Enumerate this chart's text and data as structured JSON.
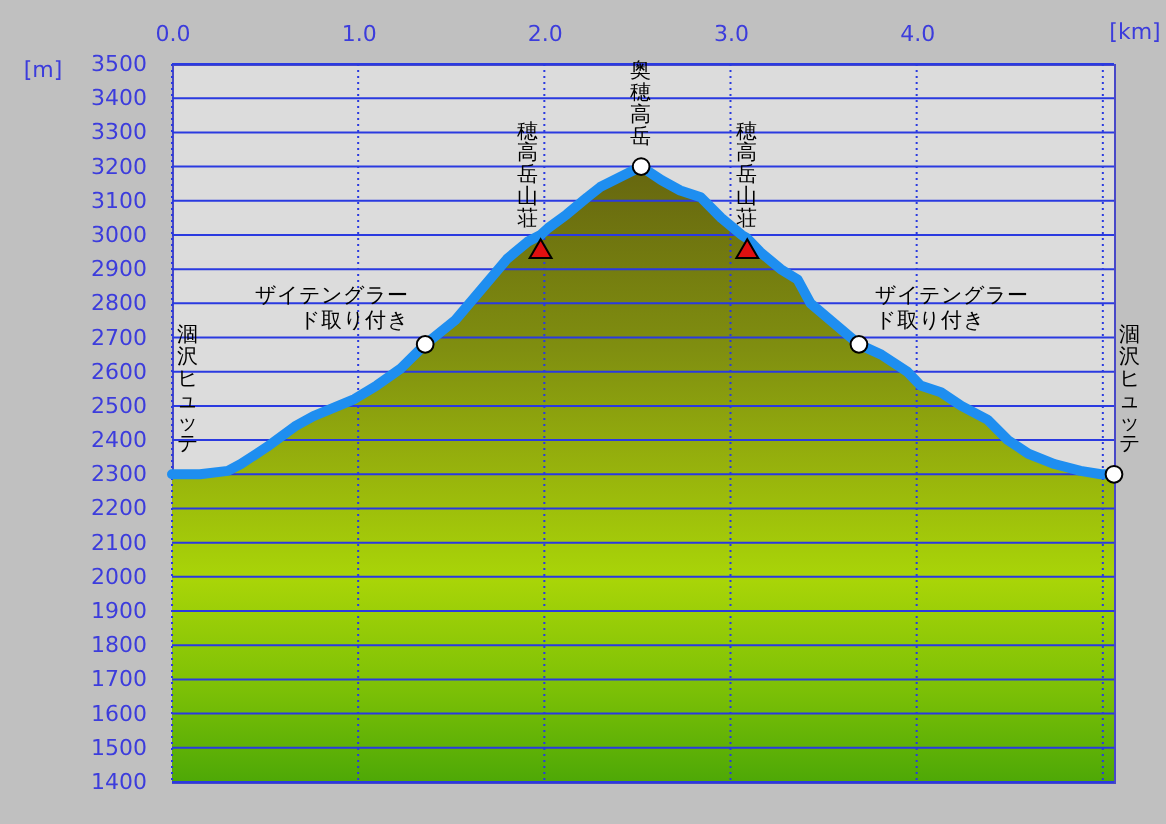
{
  "chart_data": {
    "type": "area",
    "xlabel": "[km]",
    "ylabel": "[m]",
    "xlim": [
      0,
      5.06
    ],
    "ylim": [
      1400,
      3500
    ],
    "xticks": [
      {
        "value": 0,
        "label": "0.0"
      },
      {
        "value": 1,
        "label": "1.0"
      },
      {
        "value": 2,
        "label": "2.0"
      },
      {
        "value": 3,
        "label": "3.0"
      },
      {
        "value": 4,
        "label": "4.0"
      },
      {
        "value": 5,
        "label": null
      }
    ],
    "yticks": [
      1400,
      1500,
      1600,
      1700,
      1800,
      1900,
      2000,
      2100,
      2200,
      2300,
      2400,
      2500,
      2600,
      2700,
      2800,
      2900,
      3000,
      3100,
      3200,
      3300,
      3400,
      3500
    ],
    "grid": true,
    "series": [
      {
        "color": "#1e8ef0",
        "x": [
          0,
          0.15,
          0.3,
          0.37,
          0.51,
          0.66,
          0.76,
          0.98,
          1.1,
          1.23,
          1.36,
          1.52,
          1.66,
          1.8,
          1.91,
          1.98,
          2.02,
          2.12,
          2.23,
          2.3,
          2.41,
          2.52,
          2.63,
          2.73,
          2.84,
          2.95,
          3.06,
          3.09,
          3.16,
          3.27,
          3.36,
          3.43,
          3.56,
          3.69,
          3.81,
          3.95,
          4.02,
          4.13,
          4.24,
          4.38,
          4.49,
          4.6,
          4.74,
          4.88,
          4.99,
          5.06
        ],
        "values": [
          2300,
          2300,
          2310,
          2330,
          2380,
          2440,
          2470,
          2520,
          2560,
          2610,
          2680,
          2750,
          2840,
          2930,
          2980,
          3000,
          3020,
          3060,
          3110,
          3140,
          3170,
          3200,
          3160,
          3130,
          3110,
          3050,
          3000,
          2990,
          2950,
          2900,
          2870,
          2800,
          2740,
          2680,
          2650,
          2600,
          2560,
          2540,
          2500,
          2460,
          2400,
          2360,
          2330,
          2310,
          2300,
          2300
        ]
      },
      {
        "type": "scatter",
        "color": "#ffffff",
        "marker": "circle",
        "x": [
          1.36,
          2.52,
          3.69,
          5.06
        ],
        "values": [
          2680,
          3200,
          2680,
          2300
        ]
      },
      {
        "type": "scatter",
        "color": "#e01010",
        "marker": "triangle",
        "x": [
          1.98,
          3.09
        ],
        "values": [
          2960,
          2960
        ]
      }
    ],
    "annotations": [
      {
        "text": "涸沢ヒュッテ",
        "x": 0,
        "y": 2300
      },
      {
        "text": "ザイテングラード取り付き",
        "x": 1.36,
        "y": 2680
      },
      {
        "text": "穂高岳山荘",
        "x": 1.98,
        "y": 2960
      },
      {
        "text": "奥穂高岳",
        "x": 2.52,
        "y": 3200
      },
      {
        "text": "穂高岳山荘",
        "x": 3.09,
        "y": 2960
      },
      {
        "text": "ザイテングラード取り付き",
        "x": 3.69,
        "y": 2680
      },
      {
        "text": "涸沢ヒュッテ",
        "x": 5.06,
        "y": 2300
      }
    ]
  }
}
